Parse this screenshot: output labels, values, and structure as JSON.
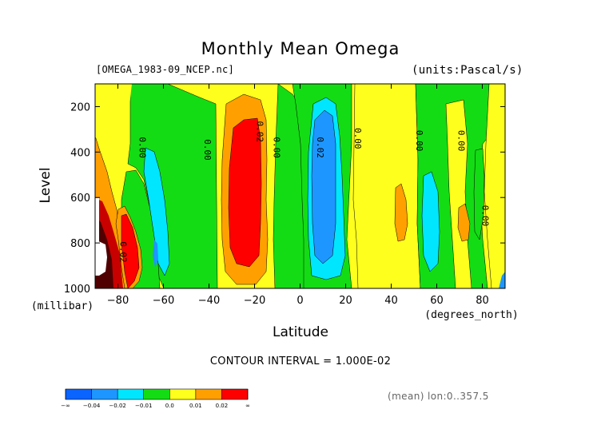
{
  "title": "Monthly Mean Omega",
  "file_label": "[OMEGA_1983-09_NCEP.nc]",
  "units_label": "(units:Pascal/s)",
  "contour_interval": "CONTOUR INTERVAL = 1.000E-02",
  "mean_note": "(mean) lon:0..357.5",
  "chart_data": {
    "type": "heatmap",
    "title": "Monthly Mean Omega",
    "xlabel": "Latitude",
    "ylabel": "Level",
    "x_unit": "(degrees_north)",
    "y_unit": "(millibar)",
    "xlim": [
      -90,
      90
    ],
    "ylim": [
      1000,
      100
    ],
    "x_ticks": [
      -80,
      -60,
      -40,
      -20,
      0,
      20,
      40,
      60,
      80
    ],
    "x_tick_labels": [
      "−80",
      "−60",
      "−40",
      "−20",
      "0",
      "20",
      "40",
      "60",
      "80"
    ],
    "y_ticks": [
      200,
      400,
      600,
      800,
      1000
    ],
    "y_tick_labels": [
      "200",
      "400",
      "600",
      "800",
      "1000"
    ],
    "contour_labels": [
      {
        "text": "0.00",
        "lat": -70.5,
        "level": 380
      },
      {
        "text": "0.00",
        "lat": -42,
        "level": 390
      },
      {
        "text": "0.02",
        "lat": -19,
        "level": 310
      },
      {
        "text": "0.00",
        "lat": -11.5,
        "level": 380
      },
      {
        "text": "0.02",
        "lat": 7.5,
        "level": 380
      },
      {
        "text": "0.00",
        "lat": 24,
        "level": 340
      },
      {
        "text": "0.00",
        "lat": 51,
        "level": 350
      },
      {
        "text": "0.00",
        "lat": 69.5,
        "level": 350
      },
      {
        "text": "0.00",
        "lat": 80,
        "level": 680
      },
      {
        "text": "0.02",
        "lat": -79,
        "level": 840
      }
    ],
    "colorbar": {
      "colors": [
        "#0a64ff",
        "#1e96ff",
        "#00e6ff",
        "#14dc14",
        "#ffff1e",
        "#ffa000",
        "#ff0000"
      ],
      "labels": [
        "−∞",
        "−0.04",
        "−0.02",
        "−0.01",
        "0.0",
        "0.01",
        "0.02",
        "∞"
      ]
    }
  }
}
